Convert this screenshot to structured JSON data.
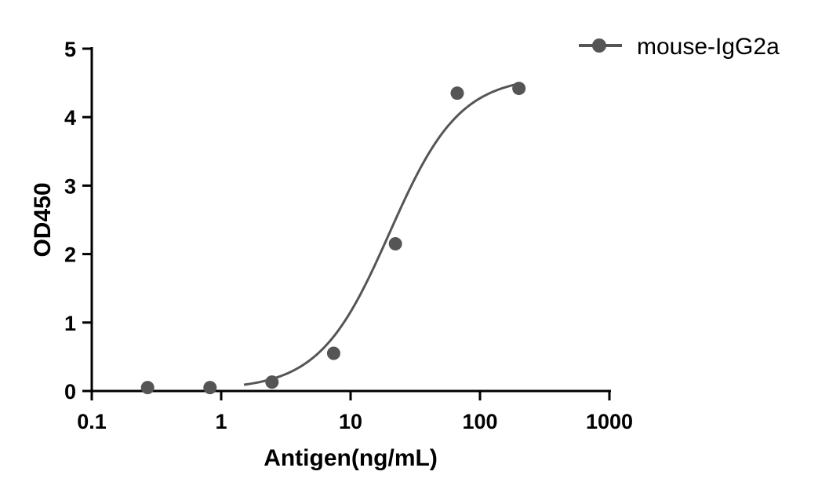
{
  "chart_data": {
    "type": "scatter",
    "xlabel": "Antigen(ng/mL)",
    "ylabel": "OD450",
    "xscale": "log",
    "xlim": [
      0.1,
      1000
    ],
    "ylim": [
      0,
      5
    ],
    "x_ticks": [
      {
        "value": 0.1,
        "label": "0.1"
      },
      {
        "value": 1,
        "label": "1"
      },
      {
        "value": 10,
        "label": "10"
      },
      {
        "value": 100,
        "label": "100"
      },
      {
        "value": 1000,
        "label": "1000"
      }
    ],
    "y_ticks": [
      {
        "value": 0,
        "label": "0"
      },
      {
        "value": 1,
        "label": "1"
      },
      {
        "value": 2,
        "label": "2"
      },
      {
        "value": 3,
        "label": "3"
      },
      {
        "value": 4,
        "label": "4"
      },
      {
        "value": 5,
        "label": "5"
      }
    ],
    "legend_position": "top-right",
    "grid": false,
    "color": "#555555",
    "series": [
      {
        "name": "mouse-IgG2a",
        "x": [
          0.27,
          0.82,
          2.47,
          7.4,
          22.2,
          66.7,
          200
        ],
        "y": [
          0.05,
          0.05,
          0.13,
          0.55,
          2.15,
          4.35,
          4.42
        ],
        "fit": {
          "model": "4PL",
          "bottom": 0.02,
          "top": 4.6,
          "ec50": 20,
          "hill": 1.6,
          "x_range": [
            1.5,
            200
          ]
        }
      }
    ]
  }
}
